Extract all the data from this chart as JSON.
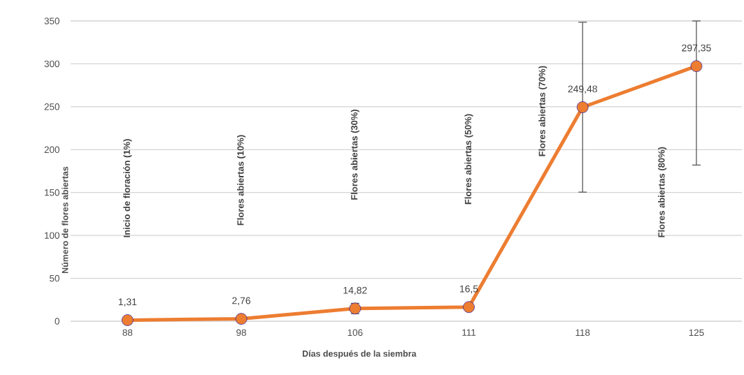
{
  "chart_data": {
    "type": "line",
    "xlabel": "Días después de la siembra",
    "ylabel": "Número de flores abiertas",
    "categories": [
      "88",
      "98",
      "106",
      "111",
      "118",
      "125"
    ],
    "series": [
      {
        "color": "#ed7d31",
        "values": [
          1.31,
          2.76,
          14.82,
          16.5,
          249.48,
          297.35
        ],
        "value_labels": [
          "1,31",
          "2,76",
          "14,82",
          "16,5",
          "249,48",
          "297,35"
        ],
        "errors": [
          null,
          null,
          6,
          null,
          99,
          [
            182,
            350
          ]
        ]
      }
    ],
    "ylim": [
      0,
      350
    ],
    "yticks": [
      0,
      50,
      100,
      150,
      200,
      250,
      300,
      350
    ],
    "grid": "y",
    "marker": "circle",
    "line_style": "solid",
    "annotations": [
      "Inicio de floración (1%)",
      "Flores abiertas (10%)",
      "Flores abiertas (30%)",
      "Flores abiertas (50%)",
      "Flores abiertas (70%)",
      "Flores abiertas (80%)"
    ]
  }
}
